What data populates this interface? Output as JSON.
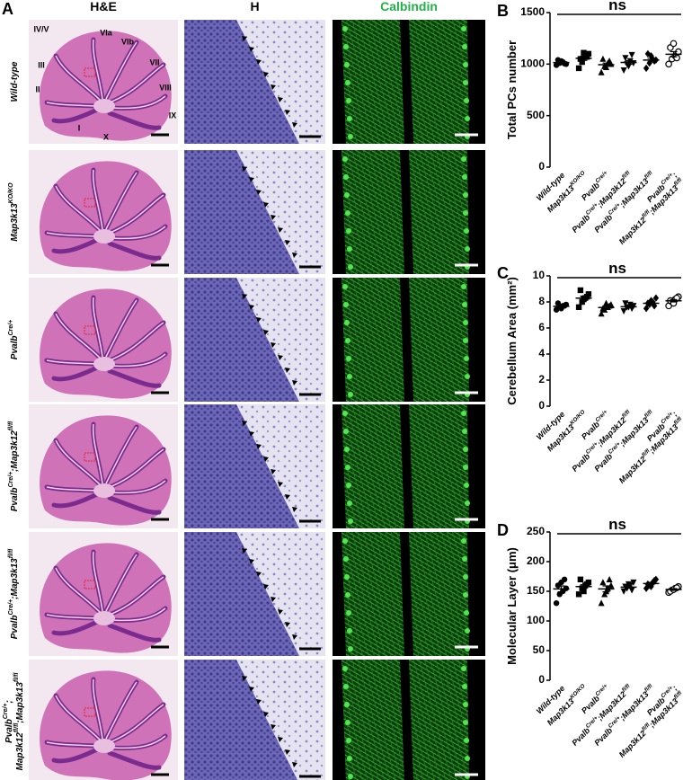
{
  "panel_a": {
    "label": "A",
    "columns": [
      "H&E",
      "H",
      "Calbindin"
    ],
    "rows": [
      [
        [
          {
            "t": "Wild-type"
          }
        ]
      ],
      [
        [
          {
            "t": "Map3k13",
            "s": "KO/KO"
          }
        ]
      ],
      [
        [
          {
            "t": "Pvalb",
            "s": "Cre/+"
          }
        ]
      ],
      [
        [
          {
            "t": "Pvalb",
            "s": "Cre/+"
          },
          {
            "t": ";Map3k12",
            "s": "fl/fl"
          }
        ]
      ],
      [
        [
          {
            "t": "Pvalb",
            "s": "Cre/+"
          },
          {
            "t": ";Map3k13",
            "s": "fl/fl"
          }
        ]
      ],
      [
        [
          {
            "t": "Pvalb",
            "s": "Cre/+"
          },
          {
            "t": ";"
          }
        ],
        [
          {
            "t": "Map3k12",
            "s": "fl/fl"
          },
          {
            "t": ";Map3k13",
            "s": "fl/fl"
          }
        ]
      ]
    ],
    "lobules": [
      "IV/V",
      "VIa",
      "VIb",
      "VII",
      "VIII",
      "IX",
      "X",
      "I",
      "II",
      "III"
    ]
  },
  "chart_data": [
    {
      "type": "dot",
      "panel": "B",
      "ylabel": "Total PCs number",
      "annotation": "ns",
      "ylim": [
        0,
        1500
      ],
      "yticks": [
        0,
        500,
        1000,
        1500
      ],
      "markers": [
        "circle",
        "square",
        "triangle",
        "triangle-down",
        "diamond",
        "circle-open"
      ],
      "categories": [
        [
          [
            {
              "t": "Wild-type"
            }
          ]
        ],
        [
          [
            {
              "t": "Map3k13",
              "s": "KO/KO"
            }
          ]
        ],
        [
          [
            {
              "t": "Pvalb",
              "s": "Cre/+"
            }
          ]
        ],
        [
          [
            {
              "t": "Pvalb",
              "s": "Cre/+"
            },
            {
              "t": ";Map3k12",
              "s": "fl/fl"
            }
          ]
        ],
        [
          [
            {
              "t": "Pvalb",
              "s": "Cre/+"
            },
            {
              "t": ";Map3k13",
              "s": "fl/fl"
            }
          ]
        ],
        [
          [
            {
              "t": "Pvalb",
              "s": "Cre/+"
            },
            {
              "t": ";"
            }
          ],
          [
            {
              "t": "Map3k12",
              "s": "fl/fl"
            },
            {
              "t": ";Map3k13",
              "s": "fl/fl"
            }
          ]
        ]
      ],
      "points": [
        [
          990,
          1010,
          1020,
          1000,
          1040,
          1030,
          1005
        ],
        [
          960,
          1020,
          1080,
          1100,
          1050,
          1110,
          1070
        ],
        [
          920,
          980,
          1010,
          1000,
          1050,
          970,
          1030
        ],
        [
          940,
          1000,
          1030,
          1010,
          1060,
          980,
          1090
        ],
        [
          960,
          1010,
          1050,
          1040,
          1100,
          1080,
          1030
        ],
        [
          1000,
          1050,
          1080,
          1120,
          1160,
          1200,
          1060
        ]
      ],
      "means": [
        1015,
        1056,
        994,
        1016,
        1039,
        1096
      ],
      "errors": [
        7,
        20,
        16,
        18,
        17,
        25
      ]
    },
    {
      "type": "dot",
      "panel": "C",
      "ylabel": "Cerebellum Area (mm²)",
      "annotation": "ns",
      "ylim": [
        0,
        10
      ],
      "yticks": [
        0,
        2,
        4,
        6,
        8,
        10
      ],
      "markers": [
        "circle",
        "square",
        "triangle",
        "triangle-down",
        "diamond",
        "circle-open"
      ],
      "categories": [
        [
          [
            {
              "t": "Wild-type"
            }
          ]
        ],
        [
          [
            {
              "t": "Map3k13",
              "s": "KO/KO"
            }
          ]
        ],
        [
          [
            {
              "t": "Pvalb",
              "s": "Cre/+"
            }
          ]
        ],
        [
          [
            {
              "t": "Pvalb",
              "s": "Cre/+"
            },
            {
              "t": ";Map3k12",
              "s": "fl/fl"
            }
          ]
        ],
        [
          [
            {
              "t": "Pvalb",
              "s": "Cre/+"
            },
            {
              "t": ";Map3k13",
              "s": "fl/fl"
            }
          ]
        ],
        [
          [
            {
              "t": "Pvalb",
              "s": "Cre/+"
            },
            {
              "t": ";"
            }
          ],
          [
            {
              "t": "Map3k12",
              "s": "fl/fl"
            },
            {
              "t": ";Map3k13",
              "s": "fl/fl"
            }
          ]
        ]
      ],
      "points": [
        [
          7.4,
          7.6,
          7.7,
          7.8,
          7.9,
          7.5,
          7.7
        ],
        [
          7.6,
          8.0,
          8.3,
          8.6,
          8.9,
          8.2,
          8.4
        ],
        [
          7.1,
          7.4,
          7.6,
          7.8,
          7.5,
          7.9,
          7.7
        ],
        [
          7.3,
          7.6,
          7.8,
          7.7,
          7.9,
          7.6,
          7.5
        ],
        [
          7.5,
          7.8,
          8.0,
          8.3,
          7.9,
          8.1,
          7.7
        ],
        [
          7.7,
          8.0,
          8.2,
          8.4,
          8.1,
          7.9,
          8.3
        ]
      ],
      "means": [
        7.66,
        8.29,
        7.57,
        7.63,
        7.9,
        8.09
      ],
      "errors": [
        0.07,
        0.16,
        0.1,
        0.07,
        0.1,
        0.09
      ]
    },
    {
      "type": "dot",
      "panel": "D",
      "ylabel": "Molecular Layer (μm)",
      "annotation": "ns",
      "ylim": [
        0,
        250
      ],
      "yticks": [
        0,
        50,
        100,
        150,
        200,
        250
      ],
      "markers": [
        "circle",
        "square",
        "triangle",
        "triangle-down",
        "diamond",
        "circle-open"
      ],
      "categories": [
        [
          [
            {
              "t": "Wild-type"
            }
          ]
        ],
        [
          [
            {
              "t": "Map3k13",
              "s": "KO/KO"
            }
          ]
        ],
        [
          [
            {
              "t": "Pvalb",
              "s": "Cre/+"
            }
          ]
        ],
        [
          [
            {
              "t": "Pvalb",
              "s": "Cre/+"
            },
            {
              "t": ";Map3k12",
              "s": "fl/fl"
            }
          ]
        ],
        [
          [
            {
              "t": "Pvalb",
              "s": "Cre/+"
            },
            {
              "t": ";Map3k13",
              "s": "fl/fl"
            }
          ]
        ],
        [
          [
            {
              "t": "Pvalb",
              "s": "Cre/+"
            },
            {
              "t": ";"
            }
          ],
          [
            {
              "t": "Map3k12",
              "s": "fl/fl"
            },
            {
              "t": ";Map3k13",
              "s": "fl/fl"
            }
          ]
        ]
      ],
      "points": [
        [
          130,
          145,
          150,
          155,
          160,
          165,
          170
        ],
        [
          145,
          155,
          160,
          165,
          170,
          150,
          162
        ],
        [
          130,
          145,
          155,
          160,
          165,
          150,
          170
        ],
        [
          150,
          155,
          160,
          165,
          158,
          162,
          152
        ],
        [
          155,
          160,
          165,
          170,
          162,
          158,
          168
        ],
        [
          148,
          152,
          155,
          158,
          150,
          153,
          156
        ]
      ],
      "means": [
        154,
        158,
        154,
        157,
        163,
        153
      ],
      "errors": [
        5,
        3,
        5,
        2,
        2,
        1.5
      ]
    }
  ]
}
